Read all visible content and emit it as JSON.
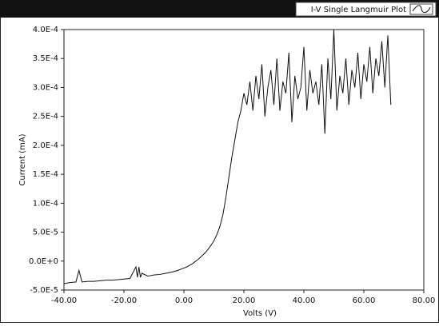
{
  "chart_data": {
    "type": "line",
    "x_label": "Volts (V)",
    "y_label": "Current (mA)",
    "series": [
      {
        "name": "I-V Single Langmuir Plot",
        "color": "#111111",
        "x": [
          -40,
          -38,
          -36,
          -35,
          -34,
          -32,
          -30,
          -28,
          -26,
          -24,
          -22,
          -20,
          -18,
          -16,
          -15.5,
          -15,
          -14.5,
          -14,
          -12,
          -10,
          -8,
          -6,
          -4,
          -2,
          0,
          1,
          2,
          3,
          4,
          5,
          6,
          7,
          8,
          9,
          10,
          11,
          12,
          13,
          14,
          15,
          16,
          17,
          18,
          19,
          20,
          21,
          22,
          23,
          24,
          25,
          26,
          27,
          28,
          29,
          30,
          31,
          32,
          33,
          34,
          35,
          36,
          37,
          38,
          39,
          40,
          41,
          42,
          43,
          44,
          45,
          46,
          47,
          48,
          49,
          50,
          51,
          52,
          53,
          54,
          55,
          56,
          57,
          58,
          59,
          60,
          61,
          62,
          63,
          64,
          65,
          66,
          67,
          68,
          69
        ],
        "values": [
          -3.9e-05,
          -3.7e-05,
          -3.6e-05,
          -1.6e-05,
          -3.6e-05,
          -3.5e-05,
          -3.5e-05,
          -3.4e-05,
          -3.3e-05,
          -3.3e-05,
          -3.2e-05,
          -3.1e-05,
          -3e-05,
          -1e-05,
          -2.8e-05,
          -1e-05,
          -2.8e-05,
          -2.1e-05,
          -2.6e-05,
          -2.4e-05,
          -2.3e-05,
          -2.1e-05,
          -1.9e-05,
          -1.6e-05,
          -1.2e-05,
          -1e-05,
          -7e-06,
          -4e-06,
          0,
          4e-06,
          9e-06,
          1.4e-05,
          2e-05,
          2.7e-05,
          3.5e-05,
          4.6e-05,
          6e-05,
          8e-05,
          0.00011,
          0.000145,
          0.00018,
          0.00021,
          0.00024,
          0.00026,
          0.00029,
          0.00027,
          0.00031,
          0.00026,
          0.00032,
          0.00028,
          0.00034,
          0.00025,
          0.0003,
          0.00033,
          0.00027,
          0.00035,
          0.00026,
          0.00031,
          0.00029,
          0.00036,
          0.00024,
          0.00032,
          0.00028,
          0.0003,
          0.00037,
          0.00026,
          0.00033,
          0.00029,
          0.00031,
          0.00027,
          0.00034,
          0.00022,
          0.00035,
          0.00028,
          0.0004,
          0.00026,
          0.00032,
          0.00029,
          0.00035,
          0.00027,
          0.00033,
          0.0003,
          0.00036,
          0.00028,
          0.00034,
          0.00031,
          0.00037,
          0.00029,
          0.00035,
          0.00032,
          0.00038,
          0.0003,
          0.00039,
          0.00027
        ]
      }
    ],
    "xlim": [
      -40,
      80
    ],
    "xticks": [
      {
        "value": -40,
        "label": "-40.00"
      },
      {
        "value": -20,
        "label": "-20.00"
      },
      {
        "value": 0,
        "label": "0.00"
      },
      {
        "value": 20,
        "label": "20.00"
      },
      {
        "value": 40,
        "label": "40.00"
      },
      {
        "value": 60,
        "label": "60.00"
      },
      {
        "value": 80,
        "label": "80.00"
      }
    ],
    "ylim": [
      -5e-05,
      0.0004
    ],
    "yticks": [
      {
        "value": -5e-05,
        "label": "-5.0E-5"
      },
      {
        "value": 0,
        "label": "0.0E+0"
      },
      {
        "value": 5e-05,
        "label": "5.0E-5"
      },
      {
        "value": 0.0001,
        "label": "1.0E-4"
      },
      {
        "value": 0.00015,
        "label": "1.5E-4"
      },
      {
        "value": 0.0002,
        "label": "2.0E-4"
      },
      {
        "value": 0.00025,
        "label": "2.5E-4"
      },
      {
        "value": 0.0003,
        "label": "3.0E-4"
      },
      {
        "value": 0.00035,
        "label": "3.5E-4"
      },
      {
        "value": 0.0004,
        "label": "4.0E-4"
      }
    ],
    "grid": false,
    "legend": "top-right"
  }
}
